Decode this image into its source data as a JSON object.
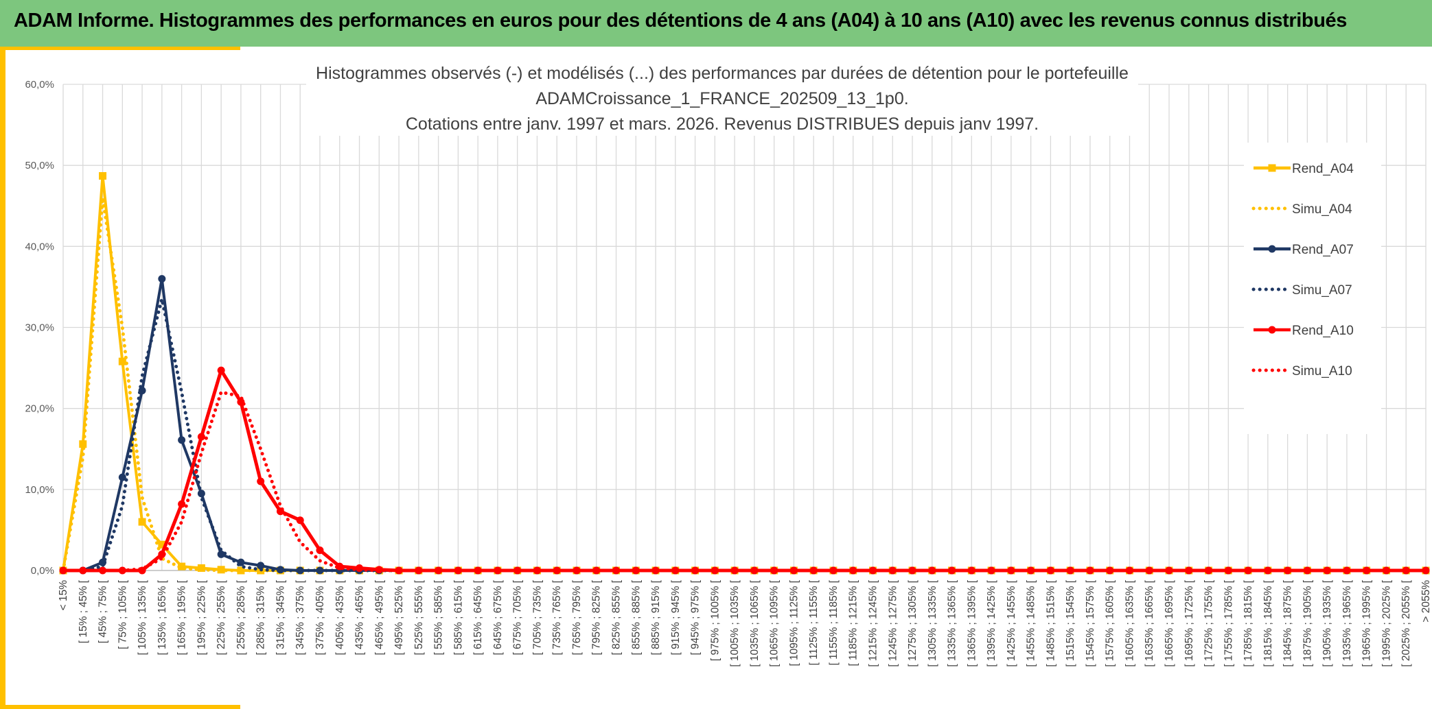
{
  "banner": {
    "title": "ADAM Informe. Histogrammes des performances en euros pour des détentions de 4 ans (A04) à 10 ans (A10) avec les revenus connus distribués"
  },
  "colors": {
    "banner_bg": "#7dc67e",
    "gold": "#ffc000",
    "navy": "#1f3864",
    "red": "#ff0000",
    "grid": "#d9d9d9"
  },
  "chart_data": {
    "type": "line",
    "title_lines": [
      "Histogrammes observés (-) et modélisés (...) des performances par durées de détention pour le portefeuille",
      "ADAMCroissance_1_FRANCE_202509_13_1p0.",
      "Cotations entre janv. 1997 et mars. 2026. Revenus DISTRIBUES depuis janv 1997."
    ],
    "ylim": [
      0,
      60
    ],
    "yticks": [
      "0,0%",
      "10,0%",
      "20,0%",
      "30,0%",
      "40,0%",
      "50,0%",
      "60,0%"
    ],
    "grid": true,
    "legend_position": "right",
    "categories": [
      "< 15%",
      "[ 15% ; 45% [",
      "[ 45% ; 75% [",
      "[ 75% ; 105% [",
      "[ 105% ; 135% [",
      "[ 135% ; 165% [",
      "[ 165% ; 195% [",
      "[ 195% ; 225% [",
      "[ 225% ; 255% [",
      "[ 255% ; 285% [",
      "[ 285% ; 315% [",
      "[ 315% ; 345% [",
      "[ 345% ; 375% [",
      "[ 375% ; 405% [",
      "[ 405% ; 435% [",
      "[ 435% ; 465% [",
      "[ 465% ; 495% [",
      "[ 495% ; 525% [",
      "[ 525% ; 555% [",
      "[ 555% ; 585% [",
      "[ 585% ; 615% [",
      "[ 615% ; 645% [",
      "[ 645% ; 675% [",
      "[ 675% ; 705% [",
      "[ 705% ; 735% [",
      "[ 735% ; 765% [",
      "[ 765% ; 795% [",
      "[ 795% ; 825% [",
      "[ 825% ; 855% [",
      "[ 855% ; 885% [",
      "[ 885% ; 915% [",
      "[ 915% ; 945% [",
      "[ 945% ; 975% [",
      "[ 975% ; 1005% [",
      "[ 1005% ; 1035% [",
      "[ 1035% ; 1065% [",
      "[ 1065% ; 1095% [",
      "[ 1095% ; 1125% [",
      "[ 1125% ; 1155% [",
      "[ 1155% ; 1185% [",
      "[ 1185% ; 1215% [",
      "[ 1215% ; 1245% [",
      "[ 1245% ; 1275% [",
      "[ 1275% ; 1305% [",
      "[ 1305% ; 1335% [",
      "[ 1335% ; 1365% [",
      "[ 1365% ; 1395% [",
      "[ 1395% ; 1425% [",
      "[ 1425% ; 1455% [",
      "[ 1455% ; 1485% [",
      "[ 1485% ; 1515% [",
      "[ 1515% ; 1545% [",
      "[ 1545% ; 1575% [",
      "[ 1575% ; 1605% [",
      "[ 1605% ; 1635% [",
      "[ 1635% ; 1665% [",
      "[ 1665% ; 1695% [",
      "[ 1695% ; 1725% [",
      "[ 1725% ; 1755% [",
      "[ 1755% ; 1785% [",
      "[ 1785% ; 1815% [",
      "[ 1815% ; 1845% [",
      "[ 1845% ; 1875% [",
      "[ 1875% ; 1905% [",
      "[ 1905% ; 1935% [",
      "[ 1935% ; 1965% [",
      "[ 1965% ; 1995% [",
      "[ 1995% ; 2025% [",
      "[ 2025% ; 2055% [",
      "> 2055%"
    ],
    "series": [
      {
        "name": "Rend_A04",
        "color": "#ffc000",
        "style": "solid",
        "marker": "square",
        "values": [
          0,
          15.6,
          48.7,
          25.8,
          6.0,
          3.2,
          0.5,
          0.3,
          0.1,
          0,
          0,
          0,
          0,
          0,
          0,
          0,
          0,
          0,
          0,
          0,
          0,
          0,
          0,
          0,
          0,
          0,
          0,
          0,
          0,
          0,
          0,
          0,
          0,
          0,
          0,
          0,
          0,
          0,
          0,
          0,
          0,
          0,
          0,
          0,
          0,
          0,
          0,
          0,
          0,
          0,
          0,
          0,
          0,
          0,
          0,
          0,
          0,
          0,
          0,
          0,
          0,
          0,
          0,
          0,
          0,
          0,
          0,
          0,
          0,
          0
        ]
      },
      {
        "name": "Simu_A04",
        "color": "#ffc000",
        "style": "dotted",
        "marker": "none",
        "values": [
          0,
          14.0,
          46.0,
          30.0,
          9.0,
          1.5,
          0.3,
          0.1,
          0,
          0,
          0,
          0,
          0,
          0,
          0,
          0,
          0,
          0,
          0,
          0,
          0,
          0,
          0,
          0,
          0,
          0,
          0,
          0,
          0,
          0,
          0,
          0,
          0,
          0,
          0,
          0,
          0,
          0,
          0,
          0,
          0,
          0,
          0,
          0,
          0,
          0,
          0,
          0,
          0,
          0,
          0,
          0,
          0,
          0,
          0,
          0,
          0,
          0,
          0,
          0,
          0,
          0,
          0,
          0,
          0,
          0,
          0,
          0,
          0,
          0
        ]
      },
      {
        "name": "Rend_A07",
        "color": "#1f3864",
        "style": "solid",
        "marker": "circle",
        "values": [
          0,
          0,
          1.0,
          11.5,
          22.2,
          36.0,
          16.1,
          9.5,
          2.0,
          1.0,
          0.6,
          0.1,
          0,
          0,
          0,
          0,
          0,
          0,
          0,
          0,
          0,
          0,
          0,
          0,
          0,
          0,
          0,
          0,
          0,
          0,
          0,
          0,
          0,
          0,
          0,
          0,
          0,
          0,
          0,
          0,
          0,
          0,
          0,
          0,
          0,
          0,
          0,
          0,
          0,
          0,
          0,
          0,
          0,
          0,
          0,
          0,
          0,
          0,
          0,
          0,
          0,
          0,
          0,
          0,
          0,
          0,
          0,
          0,
          0,
          0
        ]
      },
      {
        "name": "Simu_A07",
        "color": "#1f3864",
        "style": "dotted",
        "marker": "none",
        "values": [
          0,
          0,
          0.5,
          8.0,
          24.0,
          33.5,
          22.0,
          9.0,
          2.5,
          0.5,
          0.1,
          0,
          0,
          0,
          0,
          0,
          0,
          0,
          0,
          0,
          0,
          0,
          0,
          0,
          0,
          0,
          0,
          0,
          0,
          0,
          0,
          0,
          0,
          0,
          0,
          0,
          0,
          0,
          0,
          0,
          0,
          0,
          0,
          0,
          0,
          0,
          0,
          0,
          0,
          0,
          0,
          0,
          0,
          0,
          0,
          0,
          0,
          0,
          0,
          0,
          0,
          0,
          0,
          0,
          0,
          0,
          0,
          0,
          0,
          0
        ]
      },
      {
        "name": "Rend_A10",
        "color": "#ff0000",
        "style": "solid",
        "marker": "circle",
        "values": [
          0,
          0,
          0,
          0,
          0,
          2.0,
          8.2,
          16.5,
          24.7,
          20.8,
          11.0,
          7.3,
          6.2,
          2.5,
          0.5,
          0.3,
          0.1,
          0,
          0,
          0,
          0,
          0,
          0,
          0,
          0,
          0,
          0,
          0,
          0,
          0,
          0,
          0,
          0,
          0,
          0,
          0,
          0,
          0,
          0,
          0,
          0,
          0,
          0,
          0,
          0,
          0,
          0,
          0,
          0,
          0,
          0,
          0,
          0,
          0,
          0,
          0,
          0,
          0,
          0,
          0,
          0,
          0,
          0,
          0,
          0,
          0,
          0,
          0,
          0,
          0
        ]
      },
      {
        "name": "Simu_A10",
        "color": "#ff0000",
        "style": "dotted",
        "marker": "none",
        "values": [
          0,
          0,
          0,
          0,
          0.2,
          1.5,
          6.0,
          14.5,
          22.0,
          21.5,
          15.0,
          8.0,
          3.5,
          1.2,
          0.3,
          0.1,
          0,
          0,
          0,
          0,
          0,
          0,
          0,
          0,
          0,
          0,
          0,
          0,
          0,
          0,
          0,
          0,
          0,
          0,
          0,
          0,
          0,
          0,
          0,
          0,
          0,
          0,
          0,
          0,
          0,
          0,
          0,
          0,
          0,
          0,
          0,
          0,
          0,
          0,
          0,
          0,
          0,
          0,
          0,
          0,
          0,
          0,
          0,
          0,
          0,
          0,
          0,
          0,
          0,
          0
        ]
      }
    ]
  }
}
